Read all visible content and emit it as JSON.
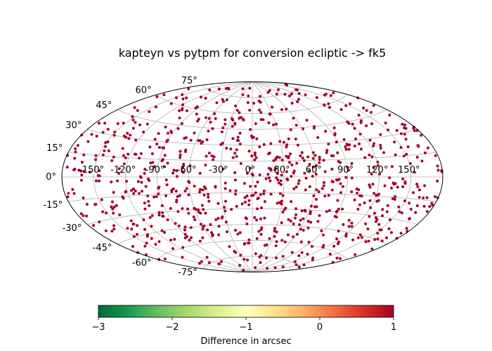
{
  "chart_data": {
    "type": "scatter",
    "projection": "aitoff",
    "title": "kapteyn vs pytpm for conversion ecliptic -> fk5",
    "lon_ticks": [
      "-150°",
      "-120°",
      "-90°",
      "-60°",
      "-30°",
      "0°",
      "30°",
      "60°",
      "90°",
      "120°",
      "150°"
    ],
    "lon_tick_values": [
      -150,
      -120,
      -90,
      -60,
      -30,
      0,
      30,
      60,
      90,
      120,
      150
    ],
    "lat_ticks": [
      "75°",
      "60°",
      "45°",
      "30°",
      "15°",
      "0°",
      "-15°",
      "-30°",
      "-45°",
      "-60°",
      "-75°"
    ],
    "lat_tick_values": [
      75,
      60,
      45,
      30,
      15,
      0,
      -15,
      -30,
      -45,
      -60,
      -75
    ],
    "grid": true,
    "point_count": 900,
    "point_value": 1,
    "point_color": "#a50026",
    "colorbar": {
      "label": "Difference in arcsec",
      "min": -3,
      "max": 1,
      "ticks": [
        "−3",
        "−2",
        "−1",
        "0",
        "1"
      ],
      "tick_values": [
        -3,
        -2,
        -1,
        0,
        1
      ],
      "colors": [
        "#006837",
        "#1a9850",
        "#66bd63",
        "#a6d96a",
        "#d9ef8b",
        "#ffffbf",
        "#fee08b",
        "#fdae61",
        "#f46d43",
        "#d73027",
        "#a50026"
      ]
    }
  }
}
